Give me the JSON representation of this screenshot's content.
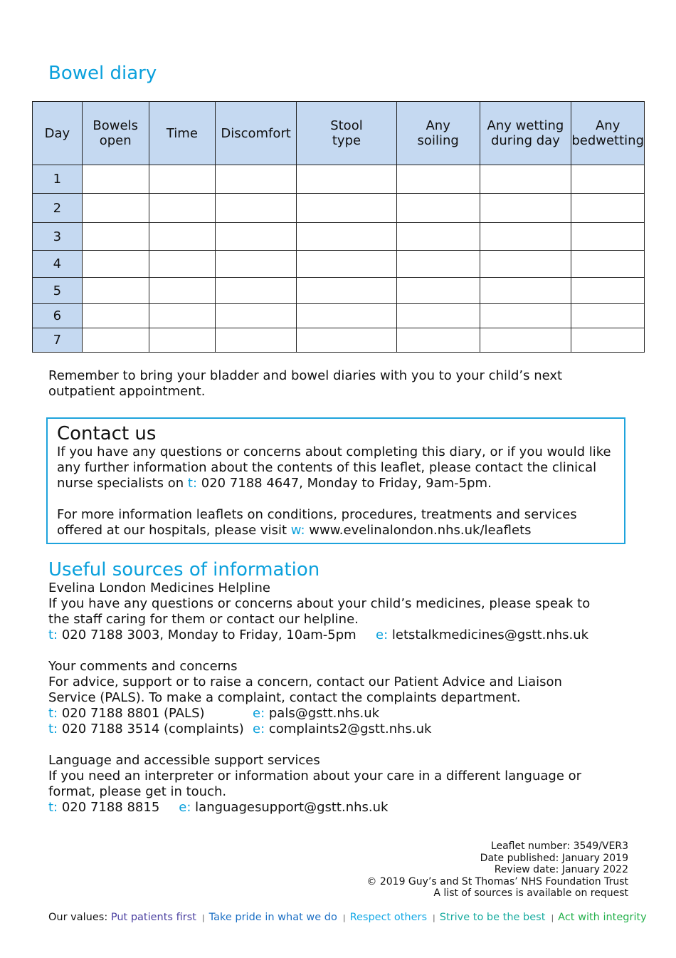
{
  "title": "Bowel diary",
  "table": {
    "headers": [
      "Day",
      "Bowels open",
      "Time",
      "Discomfort",
      "Stool type",
      "Any soiling",
      "Any wetting during day",
      "Any bedwetting"
    ],
    "days": [
      "1",
      "2",
      "3",
      "4",
      "5",
      "6",
      "7"
    ]
  },
  "reminder": "Remember to bring your bladder and bowel diaries with you to your child’s next outpatient appointment.",
  "contact": {
    "heading": "Contact us",
    "p1_pre": "If you have any questions or concerns about completing this diary, or if you would like any further information about the contents of this leaflet, please contact the clinical nurse specialists on ",
    "t_label": "t:",
    "p1_post": " 020 7188 4647, Monday to Friday, 9am-5pm.",
    "p2_pre": "For more information leaflets on conditions, procedures, treatments and services offered at our hospitals, please visit ",
    "w_label": "w:",
    "p2_post": " www.evelinalondon.nhs.uk/leaflets"
  },
  "sources": {
    "heading": "Useful sources of information",
    "s1": {
      "title": "Evelina London Medicines Helpline",
      "text": "If you have any questions or concerns about your child’s medicines, please speak to the staff caring for them or contact our helpline.",
      "t": "020 7188 3003, Monday to Friday, 10am-5pm",
      "e": "letstalkmedicines@gstt.nhs.uk"
    },
    "s2": {
      "title": "Your comments and concerns",
      "text": "For advice, support or to raise a concern, contact our Patient Advice and Liaison Service (PALS). To make a complaint, contact the complaints department.",
      "t1": "020 7188 8801 (PALS)",
      "e1": "pals@gstt.nhs.uk",
      "t2": "020 7188 3514 (complaints)",
      "e2": "complaints2@gstt.nhs.uk"
    },
    "s3": {
      "title": "Language and accessible support services",
      "text": "If you need an interpreter or information about your care in a different language or format, please get in touch.",
      "t": "020 7188 8815",
      "e": "languagesupport@gstt.nhs.uk"
    },
    "t_label": "t:",
    "e_label": "e:"
  },
  "footer": [
    "Leaflet number: 3549/VER3",
    "Date published: January 2019",
    "Review date: January 2022",
    "© 2019 Guy’s and St Thomas’ NHS Foundation Trust",
    "A list of sources is available on request"
  ],
  "values": {
    "label": "Our values:",
    "items": [
      {
        "text": "Put patients first",
        "color": "#4a3fa0"
      },
      {
        "text": "Take pride in what we do",
        "color": "#1b6fc4"
      },
      {
        "text": "Respect others",
        "color": "#14a9e6"
      },
      {
        "text": "Strive to be the best",
        "color": "#17ab9f"
      },
      {
        "text": "Act with integrity",
        "color": "#22b04a"
      }
    ]
  }
}
